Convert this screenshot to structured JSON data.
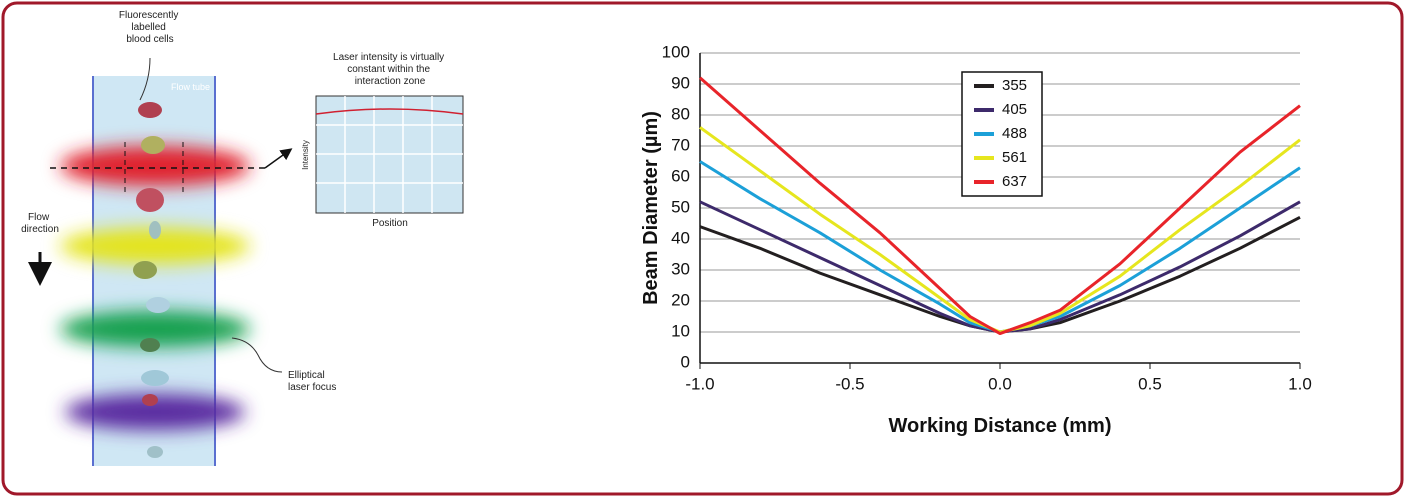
{
  "diagram": {
    "cells_label": [
      "Fluorescently",
      "labelled",
      "blood cells"
    ],
    "tube_label": "Flow tube",
    "flow_label": [
      "Flow",
      "direction"
    ],
    "focus_label": [
      "Elliptical",
      "laser focus"
    ],
    "inset_title": [
      "Laser intensity is virtually",
      "constant within the",
      "interaction zone"
    ],
    "inset_y": "Intensity",
    "inset_x": "Position"
  },
  "chart_data": {
    "type": "line",
    "xlabel": "Working Distance (mm)",
    "ylabel": "Beam Diameter (µm)",
    "x": [
      -1,
      -0.8,
      -0.6,
      -0.4,
      -0.2,
      -0.1,
      0,
      0.1,
      0.2,
      0.4,
      0.6,
      0.8,
      1
    ],
    "xlim": [
      -1,
      1
    ],
    "xticks": [
      {
        "value": -1,
        "label": "-1.0"
      },
      -0.5,
      {
        "value": 0,
        "label": "0.0"
      },
      0.5,
      {
        "value": 1,
        "label": "1.0"
      }
    ],
    "ylim": [
      0,
      100
    ],
    "yticks": [
      0,
      10,
      20,
      30,
      40,
      50,
      60,
      70,
      80,
      90,
      100
    ],
    "grid": true,
    "legend": "upper center",
    "series": [
      {
        "name": "355",
        "color": "#231f20",
        "values": [
          44,
          37,
          29,
          22,
          15,
          12,
          10,
          11,
          13,
          20,
          28,
          37,
          47
        ]
      },
      {
        "name": "405",
        "color": "#3d2a6b",
        "values": [
          52,
          43,
          34,
          25,
          16,
          12,
          10,
          11,
          14,
          22,
          31,
          41,
          52
        ]
      },
      {
        "name": "488",
        "color": "#1ca0d8",
        "values": [
          65,
          53,
          42,
          30,
          19,
          13,
          10,
          12,
          15,
          25,
          37,
          50,
          63
        ]
      },
      {
        "name": "561",
        "color": "#e6e61e",
        "values": [
          76,
          62,
          48,
          35,
          21,
          14,
          10,
          12,
          16,
          28,
          43,
          57,
          72
        ]
      },
      {
        "name": "637",
        "color": "#e8242a",
        "values": [
          92,
          75,
          58,
          42,
          24,
          15,
          9.5,
          13,
          17,
          32,
          50,
          68,
          83
        ]
      }
    ]
  }
}
